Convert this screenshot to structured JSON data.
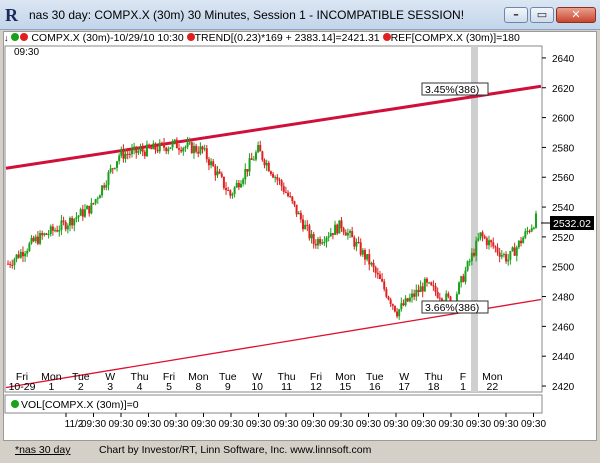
{
  "window": {
    "title": "nas 30 day: COMPX.X (30m) 30 Minutes, Session 1 - INCOMPATIBLE SESSION!",
    "icon": "R",
    "minimize_icon": "minimize-icon",
    "maximize_icon": "maximize-icon",
    "close_icon": "close-icon"
  },
  "legend": {
    "symbol": "COMPX.X (30m)-10/29/10 10:30",
    "trend": "TREND[(0.23)*169 + 2383.14]=2421.31",
    "ref": "REF[COMPX.X (30m)]=180",
    "colors": {
      "green": "#1aa01a",
      "red": "#e02020"
    }
  },
  "time_label": "09:30",
  "annotations": {
    "upper": "3.45%(386)",
    "lower": "3.66%(386)"
  },
  "price_tag": "2532.02",
  "volume_legend": "VOL[COMPX.X (30m)]=0",
  "status": {
    "tab": "*nas 30 day",
    "credit": "Chart by Investor/RT, Linn Software, Inc. www.linnsoft.com"
  },
  "chart_data": {
    "type": "candlestick",
    "y_ticks": [
      2420,
      2440,
      2460,
      2480,
      2500,
      2520,
      2540,
      2560,
      2580,
      2600,
      2620,
      2640
    ],
    "ylim": [
      2416,
      2648
    ],
    "x_day_labels": [
      {
        "day": "Fri",
        "date": "10-29"
      },
      {
        "day": "Mon",
        "date": "1"
      },
      {
        "day": "Tue",
        "date": "2"
      },
      {
        "day": "W",
        "date": "3"
      },
      {
        "day": "Thu",
        "date": "4"
      },
      {
        "day": "Fri",
        "date": "5"
      },
      {
        "day": "Mon",
        "date": "8"
      },
      {
        "day": "Tue",
        "date": "9"
      },
      {
        "day": "W",
        "date": "10"
      },
      {
        "day": "Thu",
        "date": "11"
      },
      {
        "day": "Fri",
        "date": "12"
      },
      {
        "day": "Mon",
        "date": "15"
      },
      {
        "day": "Tue",
        "date": "16"
      },
      {
        "day": "W",
        "date": "17"
      },
      {
        "day": "Thu",
        "date": "18"
      },
      {
        "day": "F",
        "date": "1"
      },
      {
        "day": "Mon",
        "date": "22"
      }
    ],
    "volume_x_labels": [
      "11/2",
      "09:30",
      "09:30",
      "09:30",
      "09:30",
      "09:30",
      "09:30",
      "09:30",
      "09:30",
      "09:30",
      "09:30",
      "09:30",
      "09:30",
      "09:30",
      "09:30",
      "09:30",
      "09:30",
      "09:30"
    ],
    "upper_channel": {
      "start": 2566,
      "end": 2621
    },
    "lower_channel": {
      "start": 2419,
      "end": 2478
    },
    "daily_closes": [
      2502,
      2518,
      2528,
      2540,
      2575,
      2578,
      2582,
      2578,
      2548,
      2578,
      2550,
      2516,
      2528,
      2503,
      2470,
      2488,
      2476,
      2521,
      2505,
      2532
    ]
  }
}
